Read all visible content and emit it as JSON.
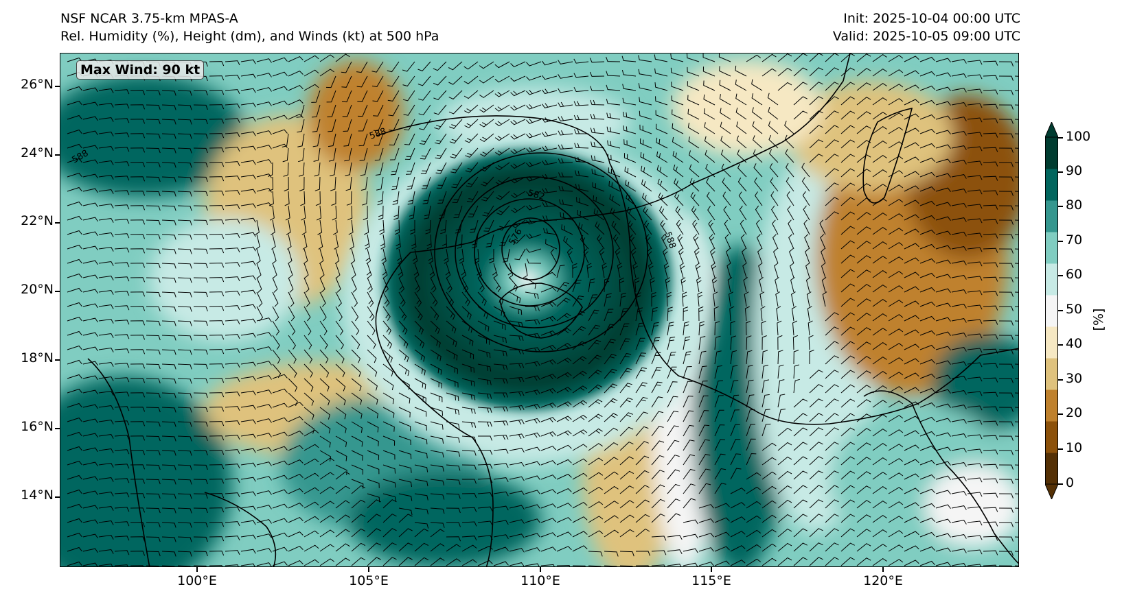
{
  "header": {
    "model": "NSF NCAR 3.75-km MPAS-A",
    "fields": "Rel. Humidity (%), Height (dm), and Winds (kt) at 500 hPa",
    "init": "Init: 2025-10-04 00:00 UTC",
    "valid": "Valid: 2025-10-05 09:00 UTC"
  },
  "map": {
    "max_wind_label": "Max Wind: 90 kt",
    "lon_range": [
      96,
      124
    ],
    "lat_range": [
      12,
      27
    ],
    "lat_ticks": [
      "26°N",
      "24°N",
      "22°N",
      "20°N",
      "18°N",
      "16°N",
      "14°N"
    ],
    "lon_ticks": [
      "100°E",
      "105°E",
      "110°E",
      "115°E",
      "120°E"
    ],
    "height_contour_labels": [
      "588",
      "582",
      "576",
      "588",
      "588"
    ],
    "typhoon_center": {
      "lon": 110.0,
      "lat": 20.8
    }
  },
  "colorbar": {
    "unit": "[%]",
    "ticks": [
      "100",
      "90",
      "80",
      "70",
      "60",
      "50",
      "40",
      "30",
      "20",
      "10",
      "0"
    ],
    "colors": [
      "#543005",
      "#8c510a",
      "#bf812d",
      "#dfc27d",
      "#f6e8c3",
      "#f5f5f5",
      "#c7eae5",
      "#80cdc1",
      "#35978f",
      "#01665e",
      "#003c30"
    ]
  }
}
